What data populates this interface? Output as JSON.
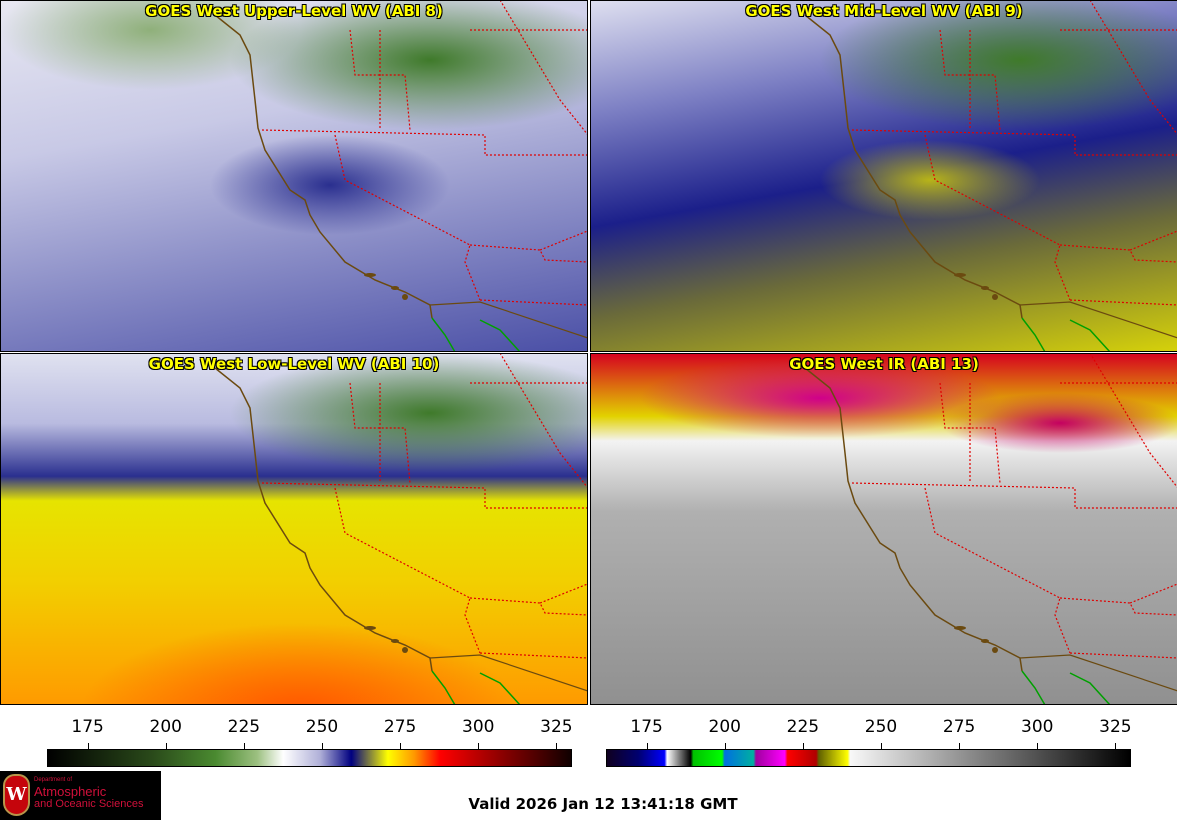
{
  "panels": [
    {
      "title": "GOES West Upper-Level WV (ABI 8)"
    },
    {
      "title": "GOES West Mid-Level WV (ABI 9)"
    },
    {
      "title": "GOES West Low-Level WV (ABI 10)"
    },
    {
      "title": "GOES West IR (ABI 13)"
    }
  ],
  "colorbars": [
    {
      "name": "water-vapor",
      "range": [
        162,
        330
      ],
      "ticks": [
        "175",
        "200",
        "225",
        "250",
        "275",
        "300",
        "325"
      ]
    },
    {
      "name": "infrared",
      "range": [
        162,
        330
      ],
      "ticks": [
        "175",
        "200",
        "225",
        "250",
        "275",
        "300",
        "325"
      ]
    }
  ],
  "logo": {
    "line1": "Department of",
    "line2": "Atmospheric",
    "line3": "and Oceanic Sciences",
    "seal": "W"
  },
  "valid_time": "Valid 2026 Jan 12 13:41:18 GMT",
  "colors": {
    "title": "#ffff00",
    "coast": "#6b4a10",
    "state_border": "#e00000",
    "mexico_coast": "#00a000"
  }
}
